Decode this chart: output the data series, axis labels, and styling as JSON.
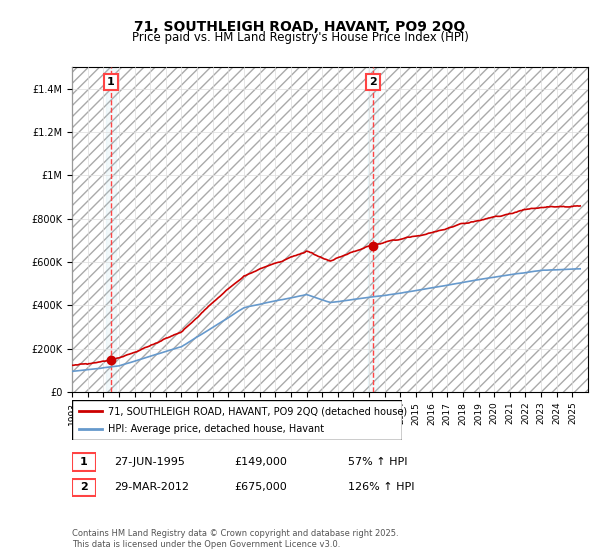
{
  "title1": "71, SOUTHLEIGH ROAD, HAVANT, PO9 2QQ",
  "title2": "Price paid vs. HM Land Registry's House Price Index (HPI)",
  "legend_line1": "71, SOUTHLEIGH ROAD, HAVANT, PO9 2QQ (detached house)",
  "legend_line2": "HPI: Average price, detached house, Havant",
  "annotation1_label": "1",
  "annotation1_date": "27-JUN-1995",
  "annotation1_price": "£149,000",
  "annotation1_hpi": "57% ↑ HPI",
  "annotation2_label": "2",
  "annotation2_date": "29-MAR-2012",
  "annotation2_price": "£675,000",
  "annotation2_hpi": "126% ↑ HPI",
  "footnote": "Contains HM Land Registry data © Crown copyright and database right 2025.\nThis data is licensed under the Open Government Licence v3.0.",
  "sale1_year": 1995.49,
  "sale1_price": 149000,
  "sale2_year": 2012.24,
  "sale2_price": 675000,
  "red_color": "#cc0000",
  "blue_color": "#6699cc",
  "vline_color": "#ff4444",
  "hatch_color": "#cccccc",
  "background_color": "#ffffff",
  "ylim_max": 1500000,
  "yticks": [
    0,
    200000,
    400000,
    600000,
    800000,
    1000000,
    1200000,
    1400000
  ],
  "ytick_labels": [
    "£0",
    "£200K",
    "£400K",
    "£600K",
    "£800K",
    "£1M",
    "£1.2M",
    "£1.4M"
  ],
  "xmin": 1993,
  "xmax": 2026
}
